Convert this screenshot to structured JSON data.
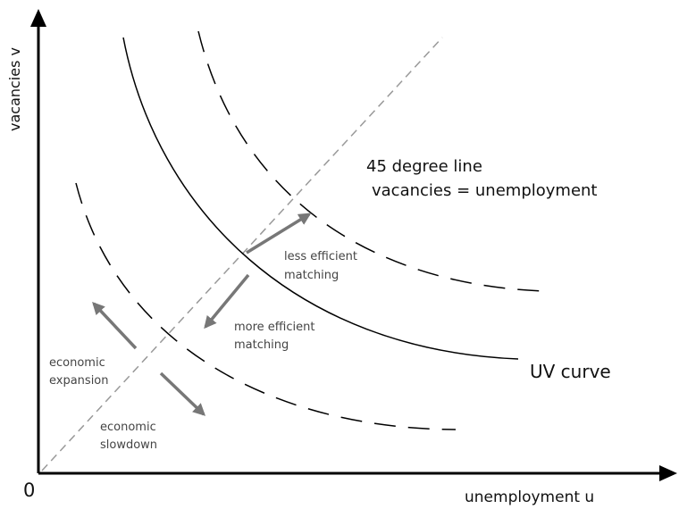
{
  "axes": {
    "x_label": "unemployment u",
    "y_label": "vacancies v",
    "origin": "0"
  },
  "line_45": {
    "lines": [
      "45 degree line",
      "vacancies = unemployment"
    ]
  },
  "curve_label": "UV curve",
  "arrows": [
    {
      "lines": [
        "less efficient",
        "matching"
      ]
    },
    {
      "lines": [
        "more efficient",
        "matching"
      ]
    },
    {
      "lines": [
        "economic",
        "expansion"
      ]
    },
    {
      "lines": [
        "economic",
        "slowdown"
      ]
    }
  ]
}
